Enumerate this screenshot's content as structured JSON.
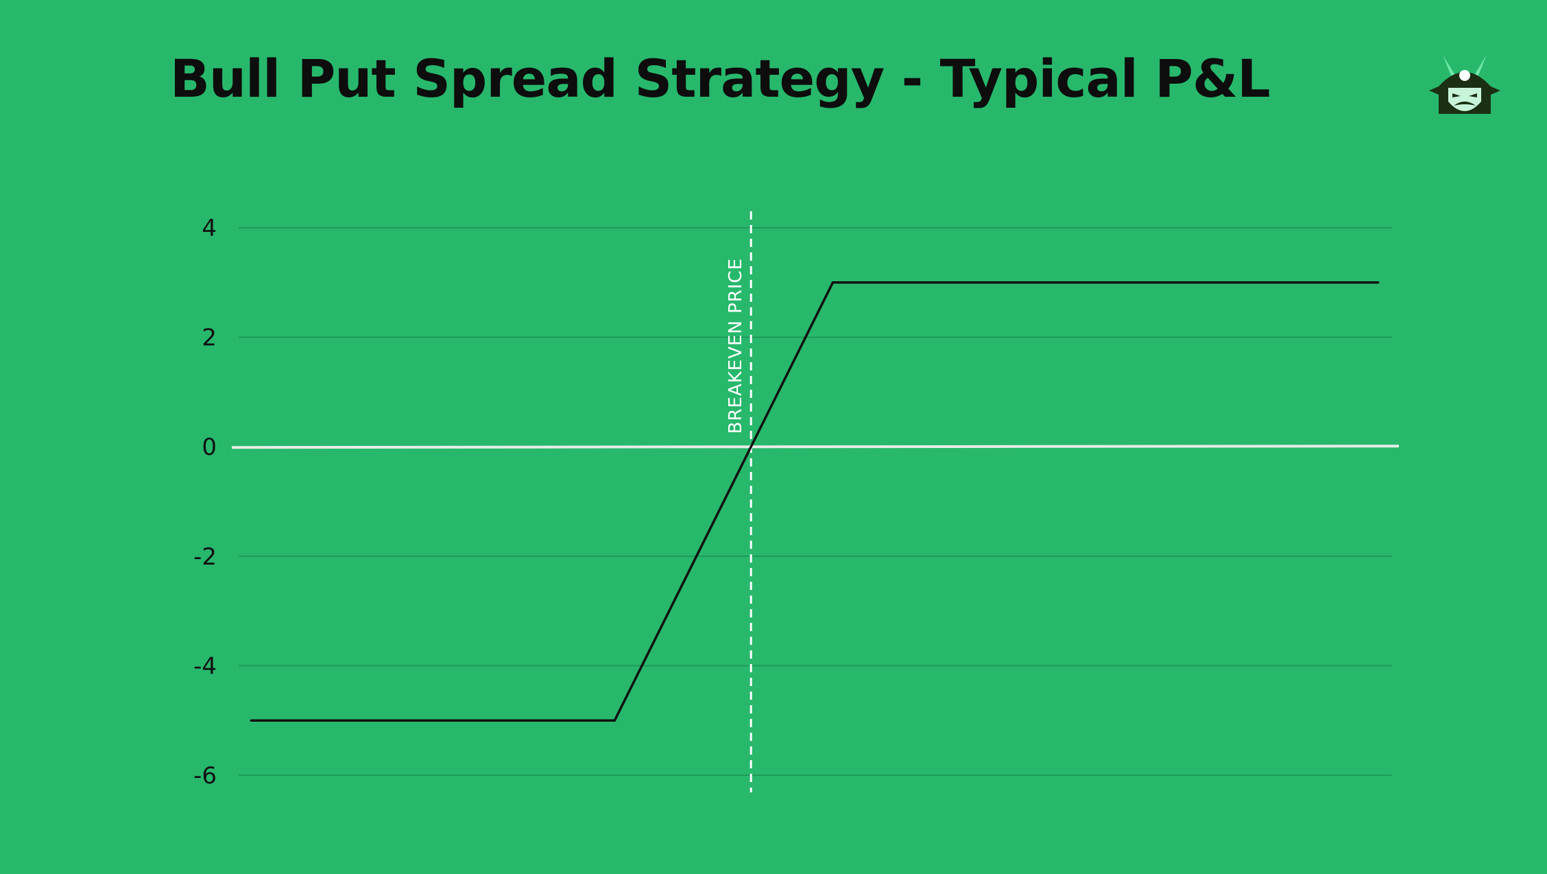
{
  "colors": {
    "background": "#28b86c",
    "grid": "#1f9a58",
    "pl_line": "#111111",
    "zero_line": "#e6ede8",
    "breakeven_line": "#ffffff",
    "logo_dark": "#1b3012",
    "logo_accent": "#6ee7a6"
  },
  "logo": {
    "icon": "samurai-helmet-icon"
  },
  "chart_data": {
    "type": "line",
    "title": "Bull Put Spread Strategy - Typical P&L",
    "xlabel": "",
    "ylabel": "",
    "ylim": [
      -6,
      4
    ],
    "yticks": [
      4,
      2,
      0,
      -2,
      -4,
      -6
    ],
    "grid": true,
    "x_axis_shown": false,
    "series": [
      {
        "points": [
          {
            "x": 0,
            "y": -5
          },
          {
            "x": 1,
            "y": -5
          },
          {
            "x": 1.6,
            "y": 3
          },
          {
            "x": 3.1,
            "y": 3
          }
        ]
      }
    ],
    "reference_lines": [
      {
        "orientation": "horizontal",
        "y": 0,
        "style": "solid"
      }
    ],
    "annotations": [
      {
        "label": "BREAKEVEN PRICE",
        "x": 1.375,
        "orientation": "vertical",
        "style": "dashed"
      }
    ]
  }
}
